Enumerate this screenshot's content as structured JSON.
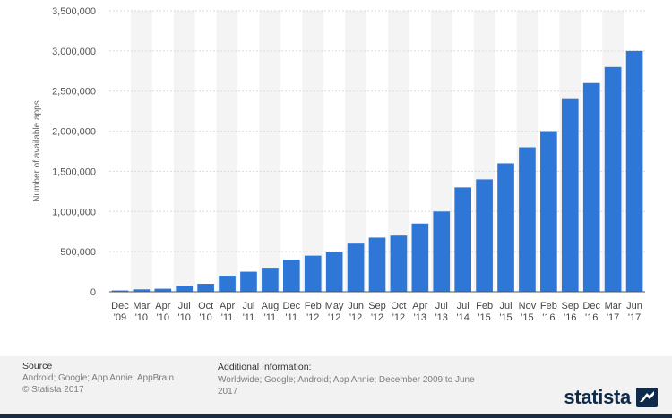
{
  "chart_data": {
    "type": "bar",
    "title": "",
    "xlabel": "",
    "ylabel": "Number of available apps",
    "ylim": [
      0,
      3500000
    ],
    "yticks": [
      "0",
      "500,000",
      "1,000,000",
      "1,500,000",
      "2,000,000",
      "2,500,000",
      "3,000,000",
      "3,500,000"
    ],
    "grid": true,
    "legend": "none",
    "bar_color": "#2f77d6",
    "categories": [
      [
        "Dec",
        "'09"
      ],
      [
        "Mar",
        "'10"
      ],
      [
        "Apr",
        "'10"
      ],
      [
        "Jul",
        "'10"
      ],
      [
        "Oct",
        "'10"
      ],
      [
        "Apr",
        "'11"
      ],
      [
        "Jul",
        "'11"
      ],
      [
        "Aug",
        "'11"
      ],
      [
        "Dec",
        "'11"
      ],
      [
        "Feb",
        "'12"
      ],
      [
        "May",
        "'12"
      ],
      [
        "Jun",
        "'12"
      ],
      [
        "Sep",
        "'12"
      ],
      [
        "Oct",
        "'12"
      ],
      [
        "Apr",
        "'13"
      ],
      [
        "Jul",
        "'13"
      ],
      [
        "Jul",
        "'14"
      ],
      [
        "Feb",
        "'15"
      ],
      [
        "Jul",
        "'15"
      ],
      [
        "Nov",
        "'15"
      ],
      [
        "Feb",
        "'16"
      ],
      [
        "Sep",
        "'16"
      ],
      [
        "Dec",
        "'16"
      ],
      [
        "Mar",
        "'17"
      ],
      [
        "Jun",
        "'17"
      ]
    ],
    "values": [
      16000,
      30000,
      38000,
      70000,
      100000,
      200000,
      250000,
      300000,
      400000,
      450000,
      500000,
      600000,
      675000,
      700000,
      850000,
      1000000,
      1300000,
      1400000,
      1600000,
      1800000,
      2000000,
      2400000,
      2600000,
      2800000,
      3000000
    ]
  },
  "footer": {
    "source_label": "Source",
    "source_lines": [
      "Android; Google; App Annie; AppBrain",
      "© Statista 2017"
    ],
    "info_label": "Additional Information:",
    "info_lines": [
      "Worldwide; Google; Android; App Annie; December 2009 to June",
      "2017"
    ]
  },
  "brand": {
    "name": "statista",
    "color": "#0f2a4a"
  }
}
